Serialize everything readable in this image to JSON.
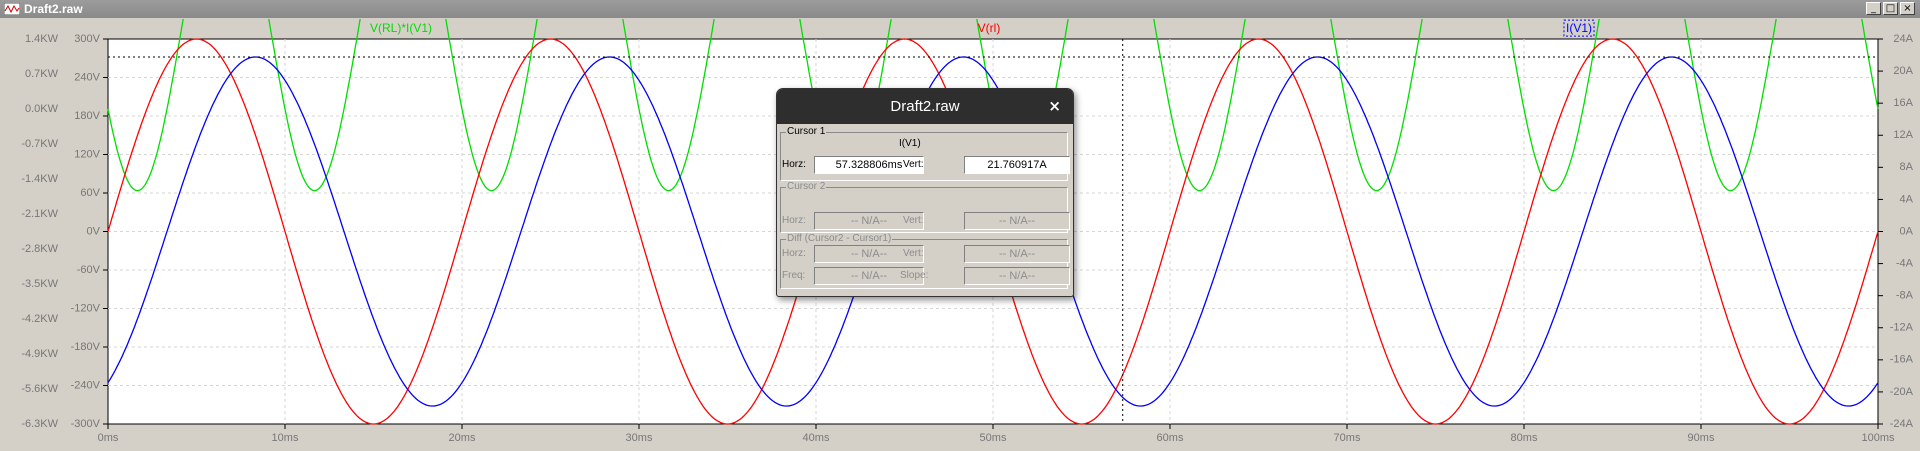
{
  "window": {
    "title": "Draft2.raw"
  },
  "chart_data": {
    "type": "line",
    "xlabel": "",
    "x_ticks": [
      "0ms",
      "10ms",
      "20ms",
      "30ms",
      "40ms",
      "50ms",
      "60ms",
      "70ms",
      "80ms",
      "90ms",
      "100ms"
    ],
    "xlim": [
      0,
      100
    ],
    "left_axis_power_ticks": [
      "1.4KW",
      "0.7KW",
      "0.0KW",
      "-0.7KW",
      "-1.4KW",
      "-2.1KW",
      "-2.8KW",
      "-3.5KW",
      "-4.2KW",
      "-4.9KW",
      "-5.6KW",
      "-6.3KW"
    ],
    "left_axis_voltage_ticks": [
      "300V",
      "240V",
      "180V",
      "120V",
      "60V",
      "0V",
      "-60V",
      "-120V",
      "-180V",
      "-240V",
      "-300V"
    ],
    "right_axis_current_ticks": [
      "24A",
      "20A",
      "16A",
      "12A",
      "8A",
      "4A",
      "0A",
      "-4A",
      "-8A",
      "-12A",
      "-16A",
      "-20A",
      "-24A"
    ],
    "ylim_voltage": [
      -300,
      300
    ],
    "ylim_current": [
      -24,
      24
    ],
    "ylim_power": [
      -6.3,
      1.4
    ],
    "grid": true,
    "series": [
      {
        "name": "V(RL)*I(V1)",
        "color": "#00dd00",
        "axis": "power",
        "kind": "power"
      },
      {
        "name": "V(rl)",
        "color": "#ff0000",
        "axis": "voltage",
        "amplitude": 300,
        "frequency_hz": 50
      },
      {
        "name": "I(V1)",
        "color": "#0000ff",
        "axis": "current",
        "amplitude": 21.76,
        "frequency_hz": 50
      }
    ],
    "cursor": {
      "x_ms": 57.328806,
      "y_A": 21.760917
    }
  },
  "dialog": {
    "title": "Draft2.raw",
    "close": "×",
    "cursor1": {
      "label": "Cursor 1",
      "trace": "I(V1)",
      "horz_label": "Horz:",
      "horz": "57.328806ms",
      "vert_label": "Vert:",
      "vert": "21.760917A"
    },
    "cursor2": {
      "label": "Cursor 2",
      "horz_label": "Horz:",
      "horz": "-- N/A--",
      "vert_label": "Vert:",
      "vert": "-- N/A--"
    },
    "diff": {
      "label": "Diff (Cursor2 - Cursor1)",
      "horz_label": "Horz:",
      "horz": "-- N/A--",
      "vert_label": "Vert:",
      "vert": "-- N/A--",
      "freq_label": "Freq:",
      "freq": "-- N/A--",
      "slope_label": "Slope:",
      "slope": "-- N/A--"
    }
  }
}
